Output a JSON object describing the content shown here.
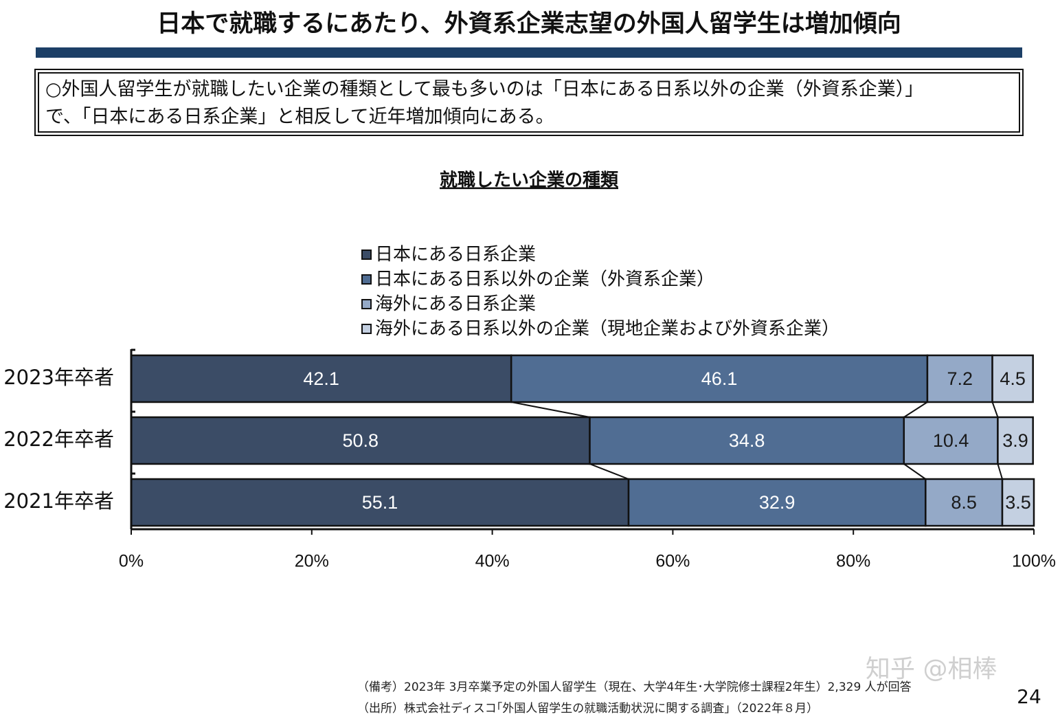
{
  "header": {
    "title": "日本で就職するにあたり、外資系企業志望の外国人留学生は増加傾向"
  },
  "summary": [
    "○外国人留学生が就職したい企業の種類として最も多いのは「日本にある日系以外の企業（外資系企業）」",
    "で、「日本にある日系企業」と相反して近年増加傾向にある。"
  ],
  "chart_data": {
    "type": "stacked-barh",
    "title": "就職したい企業の種類",
    "categories": [
      "2023年卒者",
      "2022年卒者",
      "2021年卒者"
    ],
    "series": [
      {
        "name": "日本にある日系企業",
        "color": "#3b4c66",
        "values": [
          42.1,
          50.8,
          55.1
        ]
      },
      {
        "name": "日本にある日系以外の企業（外資系企業）",
        "color": "#506d93",
        "values": [
          46.1,
          34.8,
          32.9
        ]
      },
      {
        "name": "海外にある日系企業",
        "color": "#94a9c7",
        "values": [
          7.2,
          10.4,
          8.5
        ]
      },
      {
        "name": "海外にある日系以外の企業（現地企業および外資系企業）",
        "color": "#c4d0e1",
        "values": [
          4.5,
          3.9,
          3.5
        ]
      }
    ],
    "xlim": [
      0,
      100
    ],
    "xticks": [
      {
        "value": 0,
        "label": "0%"
      },
      {
        "value": 20,
        "label": "20%"
      },
      {
        "value": 40,
        "label": "40%"
      },
      {
        "value": 60,
        "label": "60%"
      },
      {
        "value": 80,
        "label": "80%"
      },
      {
        "value": 100,
        "label": "100%"
      }
    ],
    "legend": "top-center"
  },
  "footer": {
    "note": "（備考）2023年 3月卒業予定の外国人留学生（現在、大学4年生･大学院修士課程2年生）2,329 人が回答",
    "source": "（出所）株式会社ディスコ｢外国人留学生の就職活動状況に関する調査｣（2022年８月）",
    "page": "24",
    "watermark": "知乎 @相棒"
  }
}
